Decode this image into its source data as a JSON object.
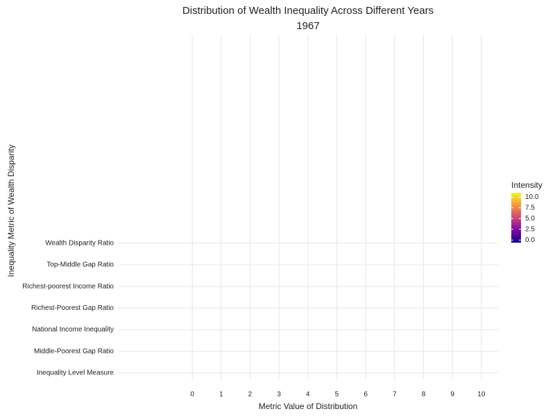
{
  "chart_data": {
    "type": "heatmap",
    "title": "Distribution of Wealth Inequality Across Different Years",
    "subtitle": "1967",
    "x_label": "Metric Value of Distribution",
    "y_label": "Inequality Metric of Wealth Disparity",
    "categories": [
      "Inequality Level Measure",
      "Middle-Poorest Gap Ratio",
      "National Income Inequality",
      "Richest-Poorest Gap Ratio",
      "Richest-poorest Income Ratio",
      "Top-Middle Gap Ratio",
      "Wealth Disparity Ratio"
    ],
    "xlim": [
      -2.57,
      10.58
    ],
    "xticks": [
      0,
      1,
      2,
      3,
      4,
      5,
      6,
      7,
      8,
      9,
      10
    ],
    "grid": true,
    "legend": {
      "title": "Intensity",
      "position": "right",
      "colormap": [
        "#0d0887",
        "#7e03a8",
        "#cc4778",
        "#f89540",
        "#f0f921"
      ],
      "clim": [
        -0.6,
        11
      ],
      "ticks": [
        {
          "value": 0,
          "label": "0.0"
        },
        {
          "value": 2.5,
          "label": "2.5"
        },
        {
          "value": 5,
          "label": "5.0"
        },
        {
          "value": 7.5,
          "label": "7.5"
        },
        {
          "value": 10,
          "label": "10.0"
        }
      ]
    }
  }
}
